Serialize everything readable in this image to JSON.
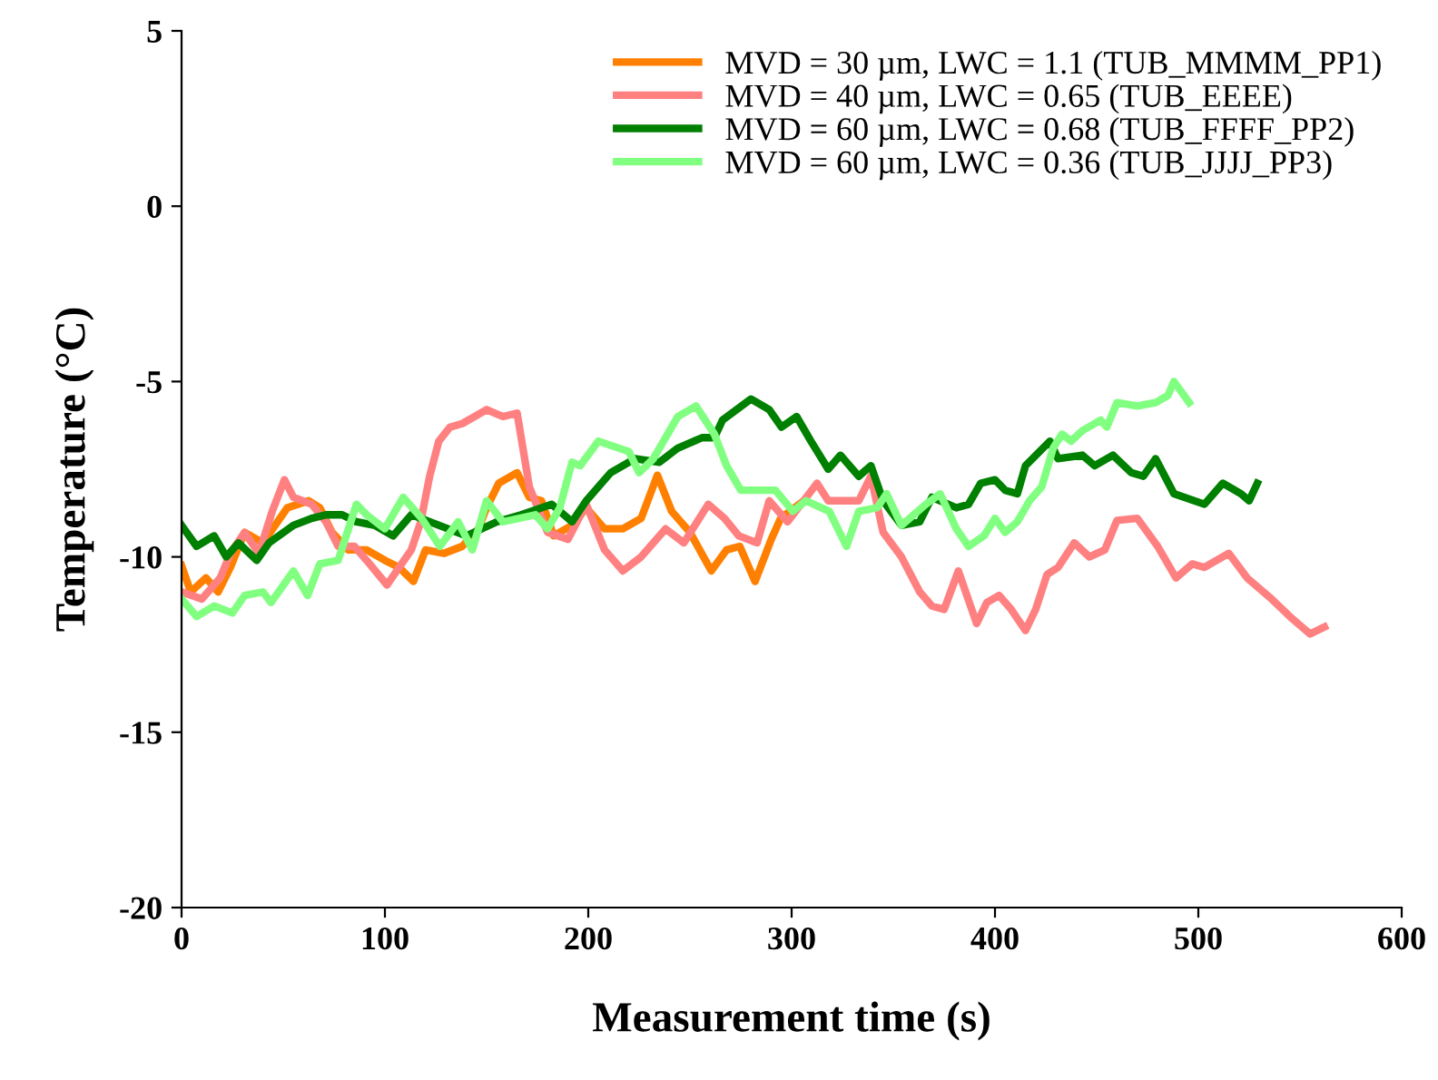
{
  "chart_data": {
    "type": "line",
    "xlabel": "Measurement time (s)",
    "ylabel": "Temperature (°C)",
    "xlim": [
      0,
      600
    ],
    "xticks": [
      0,
      100,
      200,
      300,
      400,
      500,
      600
    ],
    "ylim": [
      -20,
      5
    ],
    "yticks": [
      -20,
      -15,
      -10,
      -5,
      0,
      5
    ],
    "grid": false,
    "legend": "top right",
    "line_style": "solid",
    "marker": "none",
    "series": [
      {
        "name": "MVD = 30 µm, LWC = 1.1 (TUB_MMMM_PP1)",
        "color": "#ff8000",
        "x": [
          0,
          4.5,
          12,
          18,
          24,
          31,
          40,
          46,
          52,
          62.5,
          68,
          74,
          82,
          91,
          100,
          107,
          114,
          120,
          129,
          138,
          146,
          150,
          156,
          165,
          171,
          177,
          183,
          192,
          199,
          208,
          217,
          226,
          234,
          241,
          250,
          260.5,
          268,
          274.5,
          282,
          290,
          294.6,
          306
        ],
        "values": [
          -10.25,
          -11.0,
          -10.6,
          -11.0,
          -10.3,
          -9.3,
          -9.6,
          -9.1,
          -8.6,
          -8.4,
          -8.6,
          -9.3,
          -9.8,
          -9.8,
          -10.1,
          -10.3,
          -10.7,
          -9.8,
          -9.9,
          -9.7,
          -9.2,
          -8.6,
          -7.9,
          -7.6,
          -8.3,
          -8.4,
          -9.4,
          -9.1,
          -8.6,
          -9.2,
          -9.2,
          -8.9,
          -7.67,
          -8.7,
          -9.3,
          -10.4,
          -9.8,
          -9.7,
          -10.7,
          -9.5,
          -8.9,
          -8.4
        ]
      },
      {
        "name": "MVD = 40 µm, LWC = 0.65 (TUB_EEEE)",
        "color": "#ff8080",
        "x": [
          0,
          10,
          19,
          24,
          31,
          38,
          44.6,
          50.6,
          55,
          64,
          71,
          77,
          85,
          91,
          101,
          107,
          113,
          117.6,
          122,
          126.5,
          132,
          138,
          144,
          150,
          158,
          165,
          171,
          180,
          190,
          199,
          208,
          217,
          226,
          238,
          247,
          259,
          267,
          274,
          283,
          289,
          298,
          312.5,
          318,
          333,
          339,
          345,
          354,
          363,
          369,
          375,
          382,
          391,
          396,
          402,
          408,
          415,
          420,
          425.6,
          431,
          439,
          446.4,
          454,
          460,
          470,
          480,
          489,
          497,
          503,
          515,
          524,
          536,
          545,
          555,
          562
        ],
        "values": [
          -11.0,
          -11.2,
          -10.6,
          -9.9,
          -9.3,
          -9.9,
          -8.7,
          -7.8,
          -8.3,
          -8.5,
          -9.0,
          -9.7,
          -9.7,
          -10.1,
          -10.8,
          -10.3,
          -9.8,
          -9.0,
          -7.7,
          -6.7,
          -6.3,
          -6.2,
          -6.0,
          -5.8,
          -6.0,
          -5.9,
          -8.0,
          -9.3,
          -9.5,
          -8.5,
          -9.8,
          -10.4,
          -10.0,
          -9.2,
          -9.6,
          -8.5,
          -8.9,
          -9.4,
          -9.6,
          -8.4,
          -9.0,
          -7.9,
          -8.4,
          -8.4,
          -7.7,
          -9.3,
          -10.0,
          -11.0,
          -11.4,
          -11.5,
          -10.4,
          -11.9,
          -11.3,
          -11.1,
          -11.5,
          -12.1,
          -11.5,
          -10.5,
          -10.3,
          -9.6,
          -10.0,
          -9.8,
          -8.96,
          -8.9,
          -9.7,
          -10.6,
          -10.2,
          -10.3,
          -9.9,
          -10.6,
          -11.2,
          -11.7,
          -12.2,
          -12.0
        ]
      },
      {
        "name": "MVD = 60 µm, LWC = 0.68 (TUB_FFFF_PP2)",
        "color": "#008000",
        "x": [
          0,
          7.4,
          16,
          22,
          28,
          37,
          43,
          55,
          64,
          71,
          79,
          86,
          95,
          104,
          113,
          122,
          131,
          140,
          155,
          167,
          182,
          192,
          199,
          211,
          223,
          235,
          244,
          256,
          262,
          266,
          280,
          289,
          295,
          302.5,
          309.5,
          318,
          324,
          333,
          339,
          345,
          354,
          363,
          369,
          381,
          387,
          393,
          400,
          405,
          411,
          415,
          427,
          431,
          443,
          449,
          458,
          467,
          473,
          479,
          488,
          503,
          512,
          521,
          525,
          529
        ],
        "values": [
          -9.1,
          -9.7,
          -9.4,
          -10.0,
          -9.6,
          -10.1,
          -9.6,
          -9.1,
          -8.9,
          -8.8,
          -8.8,
          -9.0,
          -9.1,
          -9.4,
          -8.8,
          -9.0,
          -9.2,
          -9.4,
          -9.0,
          -8.8,
          -8.5,
          -9.0,
          -8.4,
          -7.6,
          -7.2,
          -7.3,
          -6.9,
          -6.6,
          -6.6,
          -6.1,
          -5.5,
          -5.8,
          -6.3,
          -6.0,
          -6.7,
          -7.5,
          -7.1,
          -7.7,
          -7.4,
          -8.4,
          -9.1,
          -9.0,
          -8.3,
          -8.6,
          -8.5,
          -7.9,
          -7.8,
          -8.1,
          -8.2,
          -7.4,
          -6.7,
          -7.2,
          -7.1,
          -7.4,
          -7.1,
          -7.6,
          -7.7,
          -7.2,
          -8.2,
          -8.5,
          -7.9,
          -8.2,
          -8.4,
          -7.9
        ]
      },
      {
        "name": "MVD = 60 µm, LWC = 0.36 (TUB_JJJJ_PP3)",
        "color": "#80ff80",
        "x": [
          0,
          7.4,
          16,
          25,
          31,
          40,
          44,
          55,
          62,
          68,
          77,
          86,
          91,
          100,
          109,
          118,
          127,
          136,
          143,
          150,
          158,
          174,
          180,
          186,
          192,
          196,
          205,
          220,
          225,
          232,
          244,
          253,
          262,
          268,
          275,
          292,
          300.6,
          307,
          318.5,
          327,
          333,
          342,
          346.7,
          354,
          366,
          373,
          381,
          387,
          394.6,
          400,
          405,
          411,
          417,
          423,
          428.6,
          433,
          437.5,
          443,
          452,
          455,
          460,
          470,
          479,
          485,
          488,
          495.5
        ],
        "values": [
          -11.2,
          -11.7,
          -11.4,
          -11.6,
          -11.1,
          -11.0,
          -11.3,
          -10.4,
          -11.1,
          -10.2,
          -10.1,
          -8.5,
          -8.8,
          -9.2,
          -8.3,
          -8.9,
          -9.7,
          -9.0,
          -9.8,
          -8.4,
          -9.0,
          -8.8,
          -9.2,
          -8.6,
          -7.3,
          -7.4,
          -6.7,
          -7.0,
          -7.6,
          -7.2,
          -6.0,
          -5.7,
          -6.5,
          -7.4,
          -8.1,
          -8.1,
          -8.7,
          -8.4,
          -8.7,
          -9.7,
          -8.7,
          -8.6,
          -8.2,
          -9.1,
          -8.5,
          -8.2,
          -9.2,
          -9.7,
          -9.4,
          -8.9,
          -9.3,
          -9.0,
          -8.4,
          -8.0,
          -6.9,
          -6.5,
          -6.7,
          -6.4,
          -6.1,
          -6.3,
          -5.6,
          -5.7,
          -5.6,
          -5.4,
          -5.0,
          -5.6
        ]
      }
    ]
  }
}
